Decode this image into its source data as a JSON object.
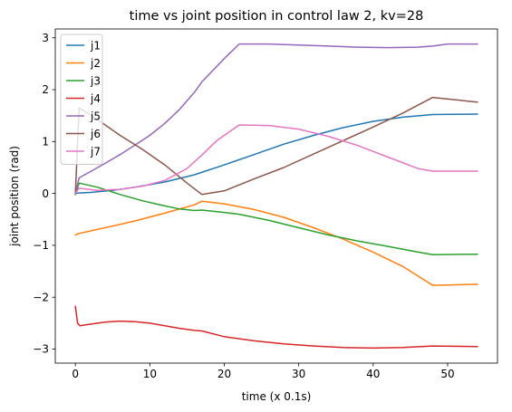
{
  "chart_data": {
    "type": "line",
    "title": "time vs joint position in control law 2, kv=28",
    "xlabel": "time (x 0.1s)",
    "ylabel": "joint position (rad)",
    "xlim": [
      -2.7,
      56.7
    ],
    "ylim": [
      -3.27,
      3.17
    ],
    "xticks": [
      0,
      10,
      20,
      30,
      40,
      50
    ],
    "yticks": [
      -3,
      -2,
      -1,
      0,
      1,
      2,
      3
    ],
    "xtick_labels": [
      "0",
      "10",
      "20",
      "30",
      "40",
      "50"
    ],
    "ytick_labels": [
      "−3",
      "−2",
      "−1",
      "0",
      "1",
      "2",
      "3"
    ],
    "grid": false,
    "legend_position": "top-left",
    "series": [
      {
        "name": "j1",
        "color": "#1f77b4",
        "x": [
          0,
          0.5,
          2,
          5,
          8,
          12,
          16,
          20,
          24,
          28,
          32,
          36,
          40,
          44,
          48,
          54
        ],
        "y": [
          0.0,
          0.01,
          0.02,
          0.06,
          0.12,
          0.22,
          0.36,
          0.55,
          0.75,
          0.95,
          1.12,
          1.27,
          1.39,
          1.47,
          1.52,
          1.53
        ]
      },
      {
        "name": "j2",
        "color": "#ff7f0e",
        "x": [
          0,
          0.5,
          4,
          8,
          12,
          16,
          17,
          20,
          24,
          28,
          32,
          36,
          40,
          44,
          48,
          54
        ],
        "y": [
          -0.8,
          -0.77,
          -0.66,
          -0.53,
          -0.38,
          -0.22,
          -0.15,
          -0.2,
          -0.31,
          -0.46,
          -0.66,
          -0.88,
          -1.13,
          -1.41,
          -1.77,
          -1.75
        ]
      },
      {
        "name": "j3",
        "color": "#2ca02c",
        "x": [
          0,
          0.5,
          3,
          6,
          9,
          12,
          14,
          16,
          17,
          19,
          22,
          26,
          30,
          34,
          38,
          42,
          46,
          48,
          54
        ],
        "y": [
          -0.02,
          0.2,
          0.12,
          -0.02,
          -0.14,
          -0.24,
          -0.3,
          -0.33,
          -0.32,
          -0.35,
          -0.4,
          -0.52,
          -0.66,
          -0.8,
          -0.92,
          -1.02,
          -1.13,
          -1.18,
          -1.17
        ]
      },
      {
        "name": "j4",
        "color": "#d62728",
        "x": [
          0,
          0.3,
          0.6,
          2,
          4,
          6,
          8,
          10,
          12,
          14,
          16,
          17,
          20,
          24,
          28,
          32,
          36,
          40,
          44,
          48,
          54
        ],
        "y": [
          -2.18,
          -2.5,
          -2.55,
          -2.52,
          -2.48,
          -2.46,
          -2.47,
          -2.5,
          -2.55,
          -2.6,
          -2.64,
          -2.65,
          -2.76,
          -2.84,
          -2.9,
          -2.94,
          -2.97,
          -2.98,
          -2.97,
          -2.94,
          -2.95
        ]
      },
      {
        "name": "j5",
        "color": "#9467bd",
        "x": [
          0,
          0.5,
          2,
          4,
          6,
          8,
          10,
          12,
          14,
          16,
          17,
          20,
          22,
          26,
          30,
          34,
          38,
          42,
          46,
          48,
          50,
          54
        ],
        "y": [
          0.0,
          0.3,
          0.42,
          0.58,
          0.75,
          0.93,
          1.12,
          1.35,
          1.62,
          1.95,
          2.15,
          2.6,
          2.88,
          2.88,
          2.86,
          2.84,
          2.82,
          2.81,
          2.82,
          2.84,
          2.88,
          2.88
        ]
      },
      {
        "name": "j6",
        "color": "#8c564b",
        "x": [
          0,
          0.5,
          3,
          6,
          9,
          12,
          15,
          17,
          20,
          24,
          28,
          32,
          36,
          40,
          44,
          48,
          54
        ],
        "y": [
          0.0,
          1.65,
          1.42,
          1.12,
          0.85,
          0.55,
          0.2,
          -0.02,
          0.05,
          0.28,
          0.5,
          0.76,
          1.02,
          1.28,
          1.55,
          1.85,
          1.76
        ]
      },
      {
        "name": "j7",
        "color": "#e377c2",
        "x": [
          0,
          0.5,
          3,
          6,
          9,
          12,
          15,
          17,
          19,
          22,
          26,
          30,
          34,
          38,
          42,
          46,
          48,
          54
        ],
        "y": [
          0.0,
          0.1,
          0.06,
          0.08,
          0.14,
          0.25,
          0.48,
          0.74,
          1.02,
          1.32,
          1.31,
          1.24,
          1.1,
          0.92,
          0.7,
          0.48,
          0.43,
          0.43
        ]
      }
    ]
  }
}
